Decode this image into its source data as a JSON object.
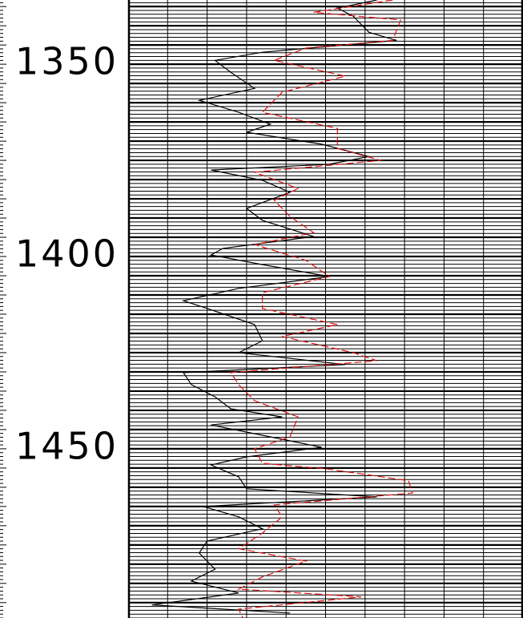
{
  "chart_data": {
    "type": "well-log",
    "ylim": [
      1333.3,
      1494
    ],
    "y_inverted": true,
    "yticks": [
      1350,
      1400,
      1450
    ],
    "xlim": [
      0,
      10
    ],
    "xticks": [
      0,
      1,
      2,
      3,
      4,
      5,
      6,
      7,
      8,
      9,
      10
    ],
    "grid": true,
    "grid_minor_step": 1,
    "grid_major_step": 5,
    "series": [
      {
        "color": "#000000",
        "dash": "solid",
        "depth": [
          1333.3,
          1335.4,
          1337.5,
          1341.7,
          1343.8,
          1346.9,
          1349.0,
          1352.1,
          1356.3,
          1359.4,
          1362.5,
          1365.6,
          1367.7,
          1370.8,
          1374.0,
          1376.0,
          1377.5,
          1380.2,
          1383.3,
          1387.5,
          1390.6,
          1394.8,
          1397.9,
          1399.6,
          1402.1,
          1405.2,
          1408.3,
          1411.5,
          1413.5,
          1417.7,
          1421.9,
          1425.0,
          1428.1,
          1430.2,
          1433.3,
          1436.5,
          1439.6,
          1441.7,
          1443.8,
          1446.9,
          1449.6,
          1452.1,
          1454.2,
          1457.3,
          1460.4,
          1462.5,
          1465.0,
          1467.7,
          1470.8,
          1474.0,
          1477.1,
          1481.3,
          1484.4,
          1487.5,
          1490.6,
          1492.7
        ],
        "values": [
          6.3,
          5.3,
          5.7,
          6.1,
          6.8,
          3.4,
          2.2,
          2.6,
          3.2,
          1.8,
          2.8,
          3.6,
          3.0,
          4.9,
          6.1,
          5.1,
          2.1,
          3.4,
          4.1,
          3.0,
          3.4,
          4.7,
          2.4,
          2.1,
          3.4,
          5.1,
          2.8,
          1.4,
          2.0,
          3.2,
          3.4,
          2.8,
          5.5,
          1.4,
          1.6,
          2.2,
          2.6,
          3.9,
          2.1,
          3.6,
          4.9,
          3.0,
          2.1,
          2.8,
          3.0,
          6.3,
          1.9,
          2.8,
          3.4,
          2.0,
          1.8,
          2.2,
          1.6,
          2.8,
          0.6,
          4.1
        ]
      },
      {
        "color": "#e01010",
        "dash": "dashed",
        "depth": [
          1333.3,
          1336.5,
          1338.5,
          1343.8,
          1345.8,
          1349.0,
          1353.1,
          1357.3,
          1362.5,
          1366.7,
          1371.9,
          1375.0,
          1378.1,
          1382.3,
          1385.4,
          1389.6,
          1393.8,
          1396.9,
          1401.0,
          1405.2,
          1409.4,
          1413.5,
          1417.7,
          1420.8,
          1425.0,
          1427.1,
          1430.2,
          1433.3,
          1437.5,
          1441.7,
          1446.9,
          1450.0,
          1453.8,
          1455.2,
          1458.3,
          1461.5,
          1464.6,
          1467.7,
          1471.9,
          1476.0,
          1479.2,
          1483.3,
          1486.5,
          1488.5,
          1491.7,
          1493.9
        ],
        "values": [
          6.7,
          4.7,
          6.9,
          6.7,
          4.5,
          3.7,
          5.5,
          3.9,
          3.4,
          5.3,
          5.3,
          6.4,
          3.2,
          4.3,
          3.7,
          4.1,
          4.7,
          3.2,
          4.5,
          5.1,
          3.4,
          3.4,
          5.3,
          3.9,
          5.7,
          6.3,
          2.6,
          2.8,
          3.2,
          4.3,
          4.1,
          3.2,
          3.4,
          5.0,
          7.1,
          7.2,
          3.7,
          3.9,
          3.4,
          2.8,
          4.5,
          3.4,
          2.8,
          5.9,
          2.8,
          2.9
        ]
      }
    ]
  }
}
